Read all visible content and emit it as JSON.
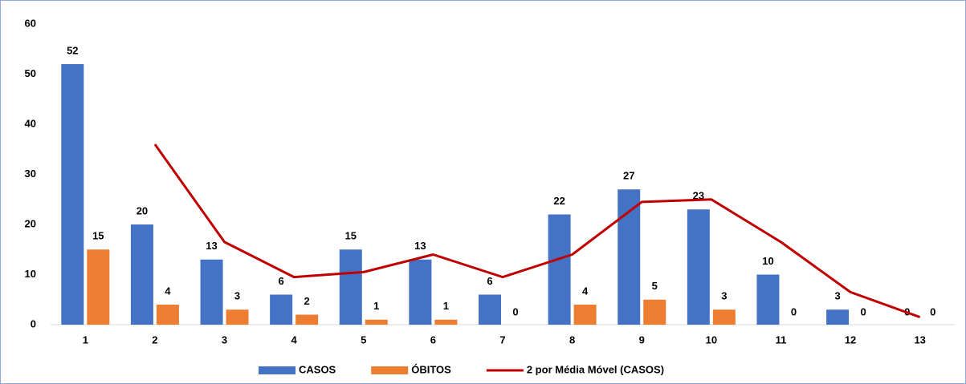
{
  "chart_data": {
    "type": "bar",
    "categories": [
      "1",
      "2",
      "3",
      "4",
      "5",
      "6",
      "7",
      "8",
      "9",
      "10",
      "11",
      "12",
      "13"
    ],
    "series": [
      {
        "name": "CASOS",
        "color": "#4472c4",
        "values": [
          52,
          20,
          13,
          6,
          15,
          13,
          6,
          22,
          27,
          23,
          10,
          3,
          0
        ]
      },
      {
        "name": "ÓBITOS",
        "color": "#ed7d31",
        "values": [
          15,
          4,
          3,
          2,
          1,
          1,
          0,
          4,
          5,
          3,
          0,
          0,
          0
        ]
      },
      {
        "name": "2 por Média Móvel (CASOS)",
        "color": "#c00000",
        "type": "line",
        "values": [
          null,
          36,
          16.5,
          9.5,
          10.5,
          14,
          9.5,
          14,
          24.5,
          25,
          16.5,
          6.5,
          1.5
        ]
      }
    ],
    "ylim": [
      0,
      60
    ],
    "yticks": [
      0,
      10,
      20,
      30,
      40,
      50,
      60
    ],
    "grid": false,
    "legend": "bottom"
  }
}
